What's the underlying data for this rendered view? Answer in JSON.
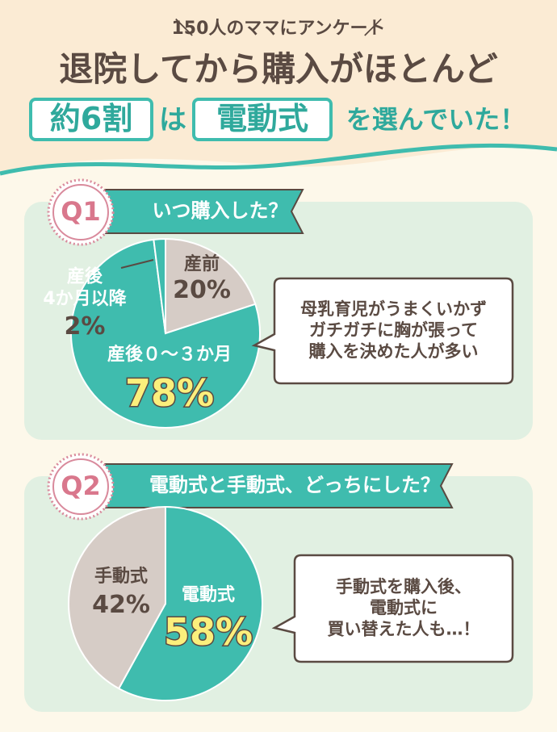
{
  "header": {
    "lead": "150人のママにアンケート",
    "title": "退院してから購入がほとんど",
    "highlight1": "約6割",
    "join": "は",
    "highlight2": "電動式",
    "tail": "を選んでいた！"
  },
  "chart_data": [
    {
      "type": "pie",
      "badge": "Q1",
      "title": "いつ購入した？",
      "categories": [
        "産前",
        "産後０～３か月",
        "産後\n4か月以降"
      ],
      "values": [
        20,
        78,
        2
      ],
      "value_labels": [
        "20%",
        "78%",
        "2%"
      ],
      "colors": [
        "#d6ccc6",
        "#3fbcae",
        "#3fbcae"
      ],
      "annotation": "母乳育児がうまくいかず\nガチガチに胸が張って\n購入を決めた人が多い"
    },
    {
      "type": "pie",
      "badge": "Q2",
      "title": "電動式と手動式、どっちにした？",
      "categories": [
        "電動式",
        "手動式"
      ],
      "values": [
        58,
        42
      ],
      "value_labels": [
        "58%",
        "42%"
      ],
      "colors": [
        "#3fbcae",
        "#d6ccc6"
      ],
      "annotation": "手動式を購入後、\n電動式に\n買い替えた人も…！"
    }
  ]
}
